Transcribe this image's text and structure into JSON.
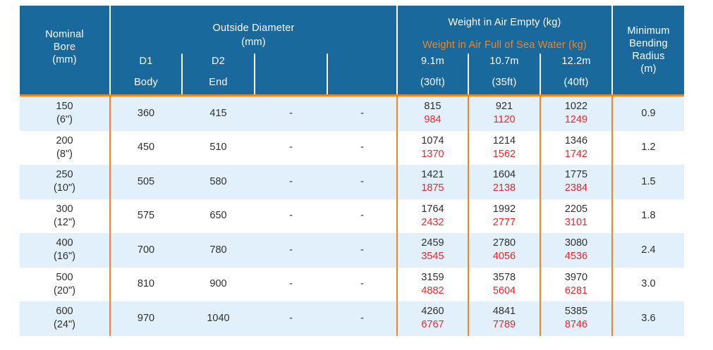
{
  "colors": {
    "header_blue": "#19699C",
    "accent_orange": "#EF8523",
    "full_weight_red": "#E8282D",
    "row_alt_blue": "#E1F0FA",
    "text_ink": "#2F2F2F"
  },
  "header": {
    "nominal_bore": "Nominal\nBore\n(mm)",
    "outside_diameter_title": "Outside Diameter\n(mm)",
    "weight_title_empty": "Weight in Air Empty (kg)",
    "weight_title_full": "Weight in Air Full of Sea Water (kg)",
    "min_bending_radius": "Minimum\nBending\nRadius\n(m)",
    "od_sub": [
      {
        "top": "D1",
        "bottom": "Body"
      },
      {
        "top": "D2",
        "bottom": "End"
      },
      {
        "top": "",
        "bottom": ""
      },
      {
        "top": "",
        "bottom": ""
      }
    ],
    "weight_sub": [
      {
        "top": "9.1m",
        "bottom": "(30ft)"
      },
      {
        "top": "10.7m",
        "bottom": "(35ft)"
      },
      {
        "top": "12.2m",
        "bottom": "(40ft)"
      }
    ]
  },
  "rows": [
    {
      "bore": "150\n(6\")",
      "d1": "360",
      "d2": "415",
      "c4": "-",
      "c5": "-",
      "w91_empty": "815",
      "w91_full": "984",
      "w107_empty": "921",
      "w107_full": "1120",
      "w122_empty": "1022",
      "w122_full": "1249",
      "mbr": "0.9"
    },
    {
      "bore": "200\n(8\")",
      "d1": "450",
      "d2": "510",
      "c4": "-",
      "c5": "-",
      "w91_empty": "1074",
      "w91_full": "1370",
      "w107_empty": "1214",
      "w107_full": "1562",
      "w122_empty": "1346",
      "w122_full": "1742",
      "mbr": "1.2"
    },
    {
      "bore": "250\n(10\")",
      "d1": "505",
      "d2": "580",
      "c4": "-",
      "c5": "-",
      "w91_empty": "1421",
      "w91_full": "1875",
      "w107_empty": "1604",
      "w107_full": "2138",
      "w122_empty": "1775",
      "w122_full": "2384",
      "mbr": "1.5"
    },
    {
      "bore": "300\n(12\")",
      "d1": "575",
      "d2": "650",
      "c4": "-",
      "c5": "-",
      "w91_empty": "1764",
      "w91_full": "2432",
      "w107_empty": "1992",
      "w107_full": "2777",
      "w122_empty": "2205",
      "w122_full": "3101",
      "mbr": "1.8"
    },
    {
      "bore": "400\n(16\")",
      "d1": "700",
      "d2": "780",
      "c4": "-",
      "c5": "-",
      "w91_empty": "2459",
      "w91_full": "3545",
      "w107_empty": "2780",
      "w107_full": "4056",
      "w122_empty": "3080",
      "w122_full": "4536",
      "mbr": "2.4"
    },
    {
      "bore": "500\n(20\")",
      "d1": "810",
      "d2": "900",
      "c4": "-",
      "c5": "-",
      "w91_empty": "3159",
      "w91_full": "4882",
      "w107_empty": "3578",
      "w107_full": "5604",
      "w122_empty": "3970",
      "w122_full": "6281",
      "mbr": "3.0"
    },
    {
      "bore": "600\n(24\")",
      "d1": "970",
      "d2": "1040",
      "c4": "-",
      "c5": "-",
      "w91_empty": "4260",
      "w91_full": "6767",
      "w107_empty": "4841",
      "w107_full": "7789",
      "w122_empty": "5385",
      "w122_full": "8746",
      "mbr": "3.6"
    }
  ]
}
